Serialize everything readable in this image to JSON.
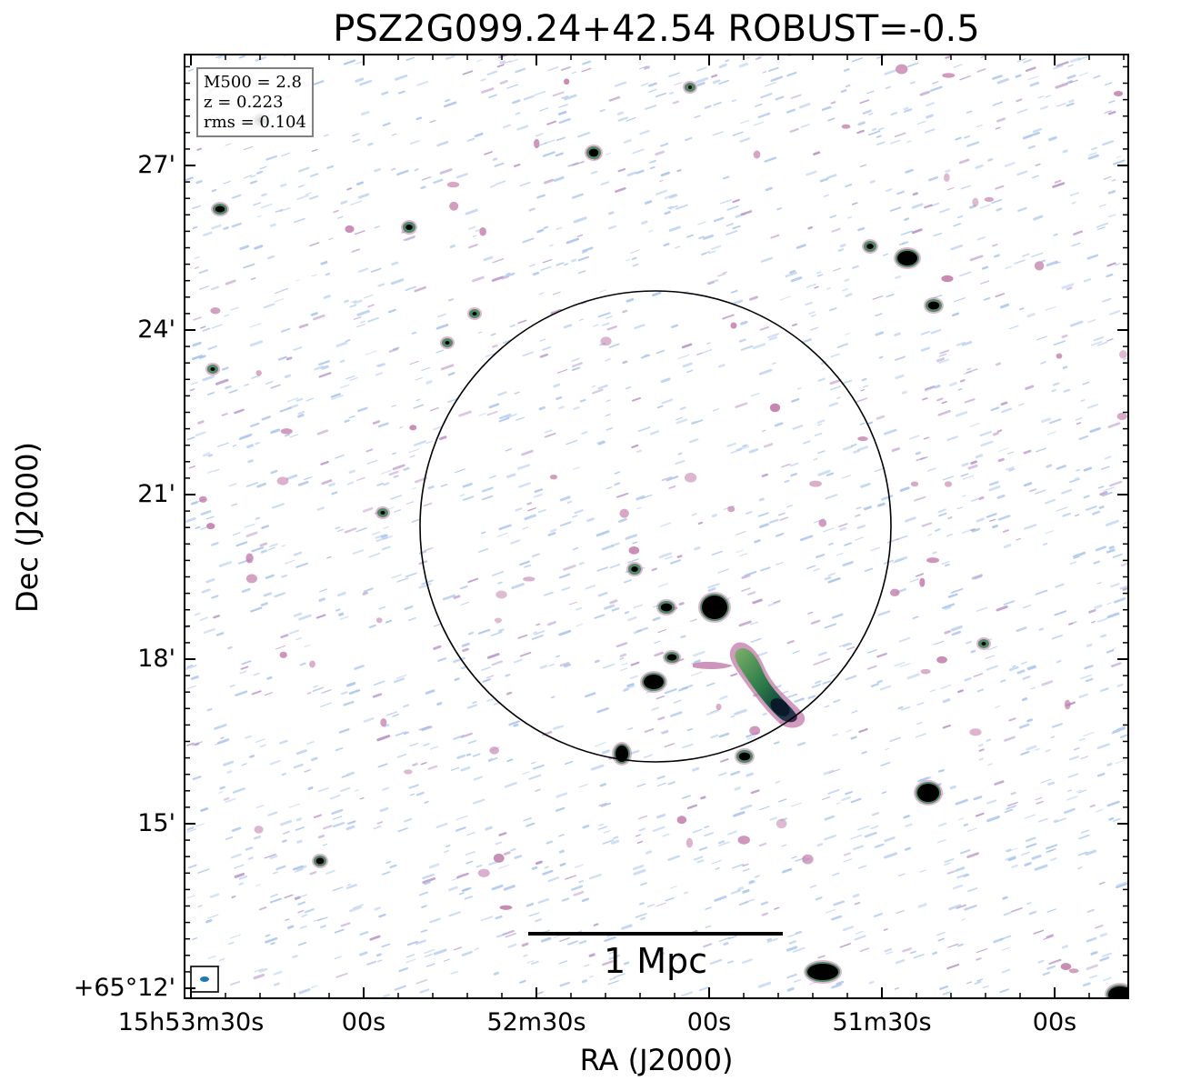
{
  "title": "PSZ2G099.24+42.54 ROBUST=-0.5",
  "axes": {
    "xlabel": "RA (J2000)",
    "ylabel": "Dec (J2000)",
    "xticks": [
      "15h53m30s",
      "00s",
      "52m30s",
      "00s",
      "51m30s",
      "00s"
    ],
    "yticks": [
      "27'",
      "24'",
      "21'",
      "18'",
      "15'",
      "+65°12'"
    ]
  },
  "info": {
    "mass": "M500 = 2.8",
    "redshift": "z = 0.223",
    "rms": "rms = 0.104"
  },
  "scale_bar": {
    "label": "1 Mpc"
  },
  "colors": {
    "noise_blue": "#a9c4ec",
    "noise_purple": "#b892c8",
    "source_pink": "#c07aa8",
    "source_green": "#2e7d4a",
    "source_core": "#000000",
    "beam": "#1f77b4"
  }
}
